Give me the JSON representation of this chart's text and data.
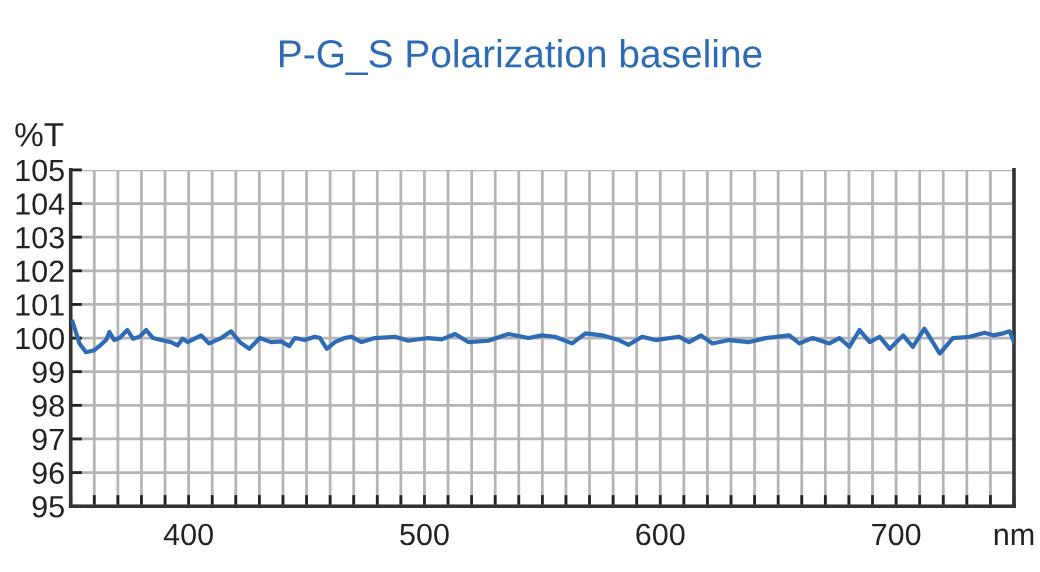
{
  "chart_data": {
    "type": "line",
    "title": "P-G_S Polarization baseline",
    "ylabel": "%T",
    "xlim": [
      350,
      750
    ],
    "ylim": [
      95,
      105
    ],
    "yticks": [
      95,
      96,
      97,
      98,
      99,
      100,
      101,
      102,
      103,
      104,
      105
    ],
    "xticks": [
      {
        "value": 350,
        "label": null
      },
      {
        "value": 360,
        "label": null
      },
      {
        "value": 370,
        "label": null
      },
      {
        "value": 380,
        "label": null
      },
      {
        "value": 390,
        "label": null
      },
      400,
      {
        "value": 410,
        "label": null
      },
      {
        "value": 420,
        "label": null
      },
      {
        "value": 430,
        "label": null
      },
      {
        "value": 440,
        "label": null
      },
      {
        "value": 450,
        "label": null
      },
      {
        "value": 460,
        "label": null
      },
      {
        "value": 470,
        "label": null
      },
      {
        "value": 480,
        "label": null
      },
      {
        "value": 490,
        "label": null
      },
      500,
      {
        "value": 510,
        "label": null
      },
      {
        "value": 520,
        "label": null
      },
      {
        "value": 530,
        "label": null
      },
      {
        "value": 540,
        "label": null
      },
      {
        "value": 550,
        "label": null
      },
      {
        "value": 560,
        "label": null
      },
      {
        "value": 570,
        "label": null
      },
      {
        "value": 580,
        "label": null
      },
      {
        "value": 590,
        "label": null
      },
      600,
      {
        "value": 610,
        "label": null
      },
      {
        "value": 620,
        "label": null
      },
      {
        "value": 630,
        "label": null
      },
      {
        "value": 640,
        "label": null
      },
      {
        "value": 650,
        "label": null
      },
      {
        "value": 660,
        "label": null
      },
      {
        "value": 670,
        "label": null
      },
      {
        "value": 680,
        "label": null
      },
      {
        "value": 690,
        "label": null
      },
      700,
      {
        "value": 710,
        "label": null
      },
      {
        "value": 720,
        "label": null
      },
      {
        "value": 730,
        "label": null
      },
      {
        "value": 740,
        "label": null
      },
      {
        "value": 750,
        "label": "nm"
      }
    ],
    "grid": true,
    "marker": "none",
    "line_style": "solid",
    "series": [
      {
        "color": "#2e6bb5",
        "x": [
          350.8,
          353.7,
          356.5,
          360,
          362.8,
          365,
          366.4,
          368.4,
          370.7,
          374,
          376.4,
          379.2,
          382,
          384.9,
          388.3,
          392.5,
          395.3,
          397.4,
          399.6,
          405.3,
          408.7,
          413.8,
          418,
          421.7,
          425.7,
          430.2,
          435,
          439.3,
          442.7,
          445,
          449.2,
          453.5,
          455.7,
          458.6,
          462,
          466.2,
          469,
          473.3,
          479,
          487.5,
          493.1,
          501.6,
          507.3,
          513,
          518.6,
          527.1,
          535.6,
          544.1,
          549.8,
          555.3,
          562.6,
          568.3,
          575.3,
          582.4,
          586.6,
          592.3,
          598,
          607.9,
          612.2,
          617.3,
          622.1,
          629.2,
          637.7,
          644.8,
          654.7,
          659,
          664.6,
          671.7,
          676,
          680.2,
          684.5,
          688.8,
          693,
          697.3,
          703,
          707.1,
          712,
          718.5,
          724.1,
          731.2,
          737.5,
          741.2,
          745.4,
          748.2,
          750
        ],
        "values": [
          100.48,
          99.84,
          99.58,
          99.64,
          99.8,
          99.94,
          100.18,
          99.94,
          100.0,
          100.24,
          99.98,
          100.04,
          100.24,
          100.0,
          99.94,
          99.88,
          99.78,
          99.98,
          99.88,
          100.08,
          99.84,
          100.0,
          100.2,
          99.88,
          99.68,
          100.0,
          99.88,
          99.9,
          99.76,
          100.0,
          99.94,
          100.04,
          100.0,
          99.68,
          99.88,
          100.0,
          100.04,
          99.88,
          100.0,
          100.04,
          99.92,
          100.0,
          99.96,
          100.12,
          99.88,
          99.92,
          100.12,
          100.0,
          100.08,
          100.04,
          99.84,
          100.14,
          100.08,
          99.94,
          99.8,
          100.04,
          99.94,
          100.04,
          99.88,
          100.08,
          99.84,
          99.94,
          99.88,
          100.0,
          100.08,
          99.84,
          100.0,
          99.84,
          100.0,
          99.74,
          100.24,
          99.88,
          100.04,
          99.68,
          100.08,
          99.74,
          100.28,
          99.54,
          100.0,
          100.04,
          100.16,
          100.08,
          100.14,
          100.2,
          99.88
        ]
      }
    ]
  }
}
